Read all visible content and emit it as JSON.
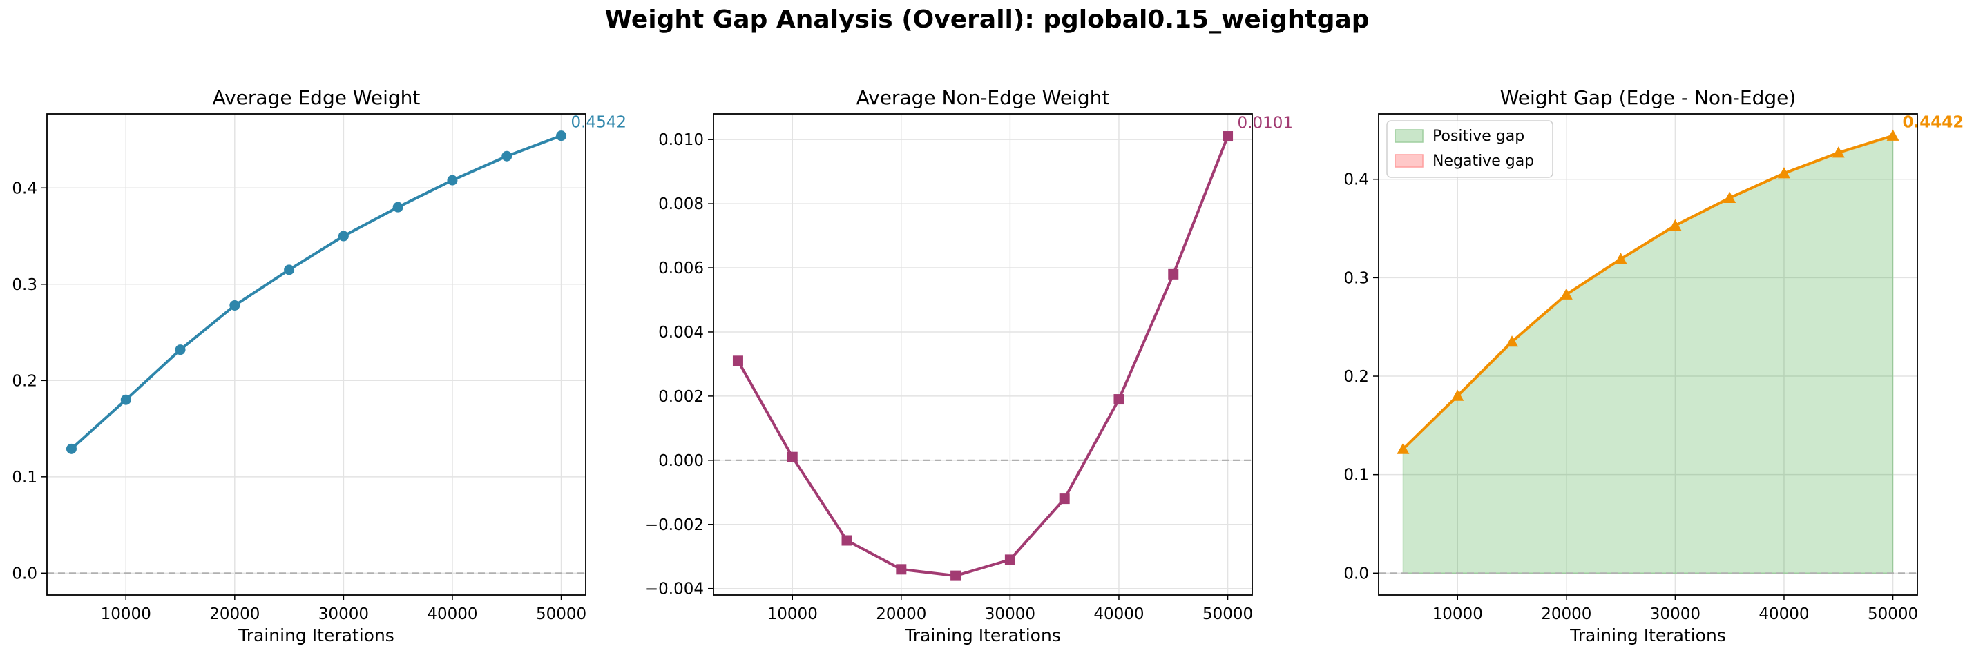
{
  "suptitle": "Weight Gap Analysis (Overall): pglobal0.15_weightgap",
  "chart_data": [
    {
      "type": "line",
      "title": "Average Edge Weight",
      "xlabel": "Training Iterations",
      "ylabel": "",
      "x": [
        5000,
        10000,
        15000,
        20000,
        25000,
        30000,
        35000,
        40000,
        45000,
        50000
      ],
      "series": [
        {
          "values": [
            0.129,
            0.18,
            0.232,
            0.278,
            0.315,
            0.35,
            0.38,
            0.408,
            0.433,
            0.4542
          ],
          "color": "#2e86ab",
          "marker": "circle"
        }
      ],
      "xlim": [
        2750,
        52250
      ],
      "ylim": [
        -0.0227,
        0.4769
      ],
      "xticks": [
        10000,
        20000,
        30000,
        40000,
        50000
      ],
      "xtick_labels": [
        "10000",
        "20000",
        "30000",
        "40000",
        "50000"
      ],
      "yticks": [
        0.0,
        0.1,
        0.2,
        0.3,
        0.4
      ],
      "ytick_labels": [
        "0.0",
        "0.1",
        "0.2",
        "0.3",
        "0.4"
      ],
      "zero_line": true,
      "grid": true,
      "end_annotation": "0.4542",
      "annotation_bold": false
    },
    {
      "type": "line",
      "title": "Average Non-Edge Weight",
      "xlabel": "Training Iterations",
      "ylabel": "",
      "x": [
        5000,
        10000,
        15000,
        20000,
        25000,
        30000,
        35000,
        40000,
        45000,
        50000
      ],
      "series": [
        {
          "values": [
            0.0031,
            0.0001,
            -0.0025,
            -0.0034,
            -0.0036,
            -0.0031,
            -0.0012,
            0.0019,
            0.0058,
            0.0101
          ],
          "color": "#a23b72",
          "marker": "square"
        }
      ],
      "xlim": [
        2750,
        52250
      ],
      "ylim": [
        -0.0042,
        0.0108
      ],
      "xticks": [
        10000,
        20000,
        30000,
        40000,
        50000
      ],
      "xtick_labels": [
        "10000",
        "20000",
        "30000",
        "40000",
        "50000"
      ],
      "yticks": [
        -0.004,
        -0.002,
        0.0,
        0.002,
        0.004,
        0.006,
        0.008,
        0.01
      ],
      "ytick_labels": [
        "−0.004",
        "−0.002",
        "0.000",
        "0.002",
        "0.004",
        "0.006",
        "0.008",
        "0.010"
      ],
      "zero_line": true,
      "grid": true,
      "end_annotation": "0.0101",
      "annotation_bold": false
    },
    {
      "type": "area",
      "title": "Weight Gap (Edge - Non-Edge)",
      "xlabel": "Training Iterations",
      "ylabel": "",
      "x": [
        5000,
        10000,
        15000,
        20000,
        25000,
        30000,
        35000,
        40000,
        45000,
        50000
      ],
      "series": [
        {
          "values": [
            0.126,
            0.18,
            0.235,
            0.283,
            0.319,
            0.353,
            0.381,
            0.406,
            0.427,
            0.4442
          ],
          "color": "#f18f01",
          "marker": "triangle"
        }
      ],
      "fill": {
        "positive_color": "#2ca02c",
        "negative_color": "#ff6b6b",
        "baseline": 0
      },
      "legend": {
        "position": "top-left",
        "entries": [
          {
            "label": "Positive gap",
            "face": "#c9e6c9",
            "edge": "#9fcf9f"
          },
          {
            "label": "Negative gap",
            "face": "#ffc8c8",
            "edge": "#ff9f9f"
          }
        ]
      },
      "xlim": [
        2750,
        52250
      ],
      "ylim": [
        -0.0222,
        0.4664
      ],
      "xticks": [
        10000,
        20000,
        30000,
        40000,
        50000
      ],
      "xtick_labels": [
        "10000",
        "20000",
        "30000",
        "40000",
        "50000"
      ],
      "yticks": [
        0.0,
        0.1,
        0.2,
        0.3,
        0.4
      ],
      "ytick_labels": [
        "0.0",
        "0.1",
        "0.2",
        "0.3",
        "0.4"
      ],
      "zero_line": true,
      "grid": true,
      "end_annotation": "0.4442",
      "annotation_bold": true
    }
  ]
}
